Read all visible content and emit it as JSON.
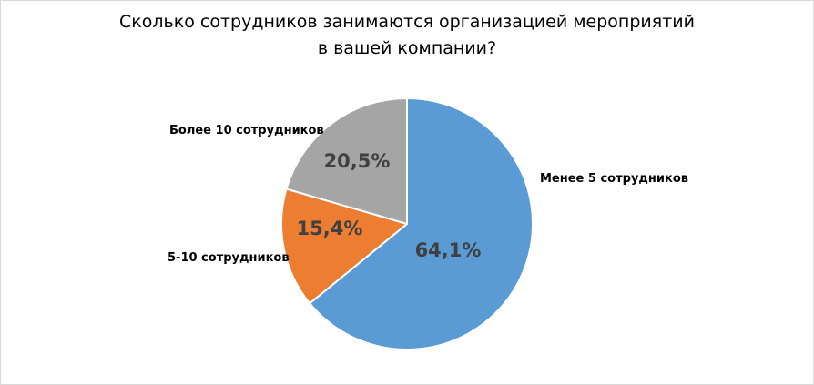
{
  "chart_data": {
    "type": "pie",
    "title_line1": "Сколько сотрудников занимаются организацией мероприятий",
    "title_line2": "в вашей компании?",
    "start_angle_deg": 0,
    "direction": "clockwise",
    "slices": [
      {
        "key": "less5",
        "label": "Менее 5 сотрудников",
        "value": 64.1,
        "display": "64,1%",
        "color": "#5b9bd5"
      },
      {
        "key": "five_ten",
        "label": "5-10 сотрудников",
        "value": 15.4,
        "display": "15,4%",
        "color": "#ed7d31"
      },
      {
        "key": "more10",
        "label": "Более 10 сотрудников",
        "value": 20.5,
        "display": "20,5%",
        "color": "#a5a5a5"
      }
    ]
  }
}
